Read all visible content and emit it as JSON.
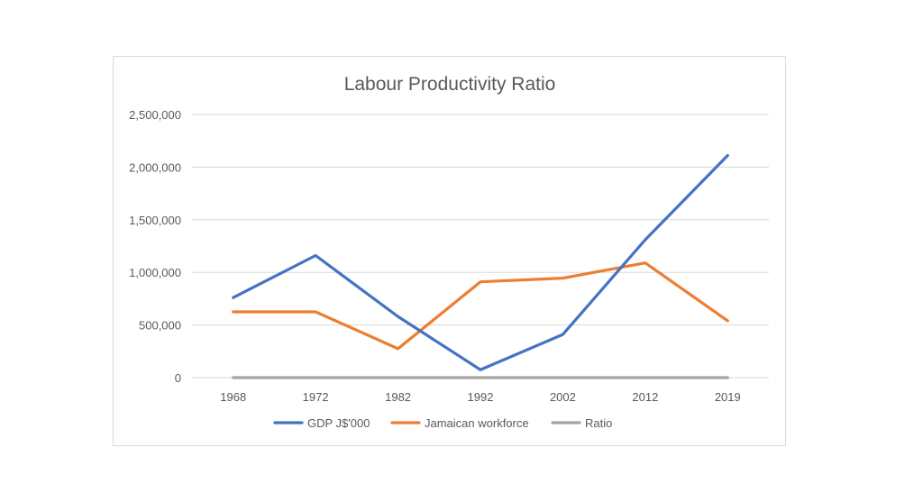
{
  "chart_data": {
    "type": "line",
    "title": "Labour Productivity Ratio",
    "xlabel": "",
    "ylabel": "",
    "categories": [
      "1968",
      "1972",
      "1982",
      "1992",
      "2002",
      "2012",
      "2019"
    ],
    "ylim": [
      0,
      2500000
    ],
    "yticks": [
      0,
      500000,
      1000000,
      1500000,
      2000000,
      2500000
    ],
    "ytick_labels": [
      "0",
      "500,000",
      "1,000,000",
      "1,500,000",
      "2,000,000",
      "2,500,000"
    ],
    "grid": true,
    "legend_position": "bottom",
    "series": [
      {
        "name": "GDP J$'000",
        "color": "#4472C4",
        "values": [
          760000,
          1160000,
          580000,
          75000,
          410000,
          1310000,
          2110000
        ]
      },
      {
        "name": "Jamaican workforce",
        "color": "#ED7D31",
        "values": [
          625000,
          625000,
          275000,
          910000,
          945000,
          1090000,
          540000
        ]
      },
      {
        "name": "Ratio",
        "color": "#A5A5A5",
        "values": [
          1.2,
          1.9,
          2.1,
          0.1,
          0.4,
          1.2,
          3.9
        ]
      }
    ]
  }
}
